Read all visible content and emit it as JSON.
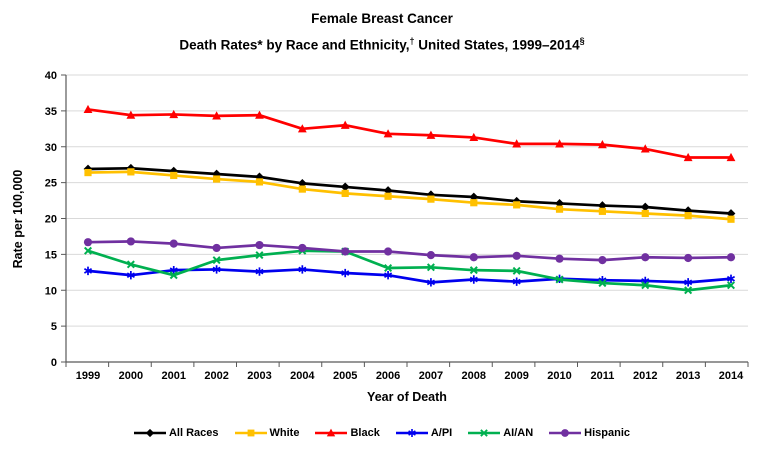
{
  "title": {
    "line1": "Female Breast Cancer",
    "line2_seg1": "Death Rates* by Race and Ethnicity,",
    "line2_sup1": "†",
    "line2_seg2": " United States, 1999–2014",
    "line2_sup2": "§"
  },
  "chart_data": {
    "type": "line",
    "title": "Female Breast Cancer Death Rates* by Race and Ethnicity,† United States, 1999–2014§",
    "xlabel": "Year of Death",
    "ylabel": "Rate per 100,000",
    "x": [
      1999,
      2000,
      2001,
      2002,
      2003,
      2004,
      2005,
      2006,
      2007,
      2008,
      2009,
      2010,
      2011,
      2012,
      2013,
      2014
    ],
    "ylim": [
      0,
      40
    ],
    "yticks": [
      0,
      5,
      10,
      15,
      20,
      25,
      30,
      35,
      40
    ],
    "grid": "horizontal",
    "legend_position": "bottom",
    "grid_color": "#d9d9d9",
    "axis_color": "#595959",
    "series": [
      {
        "name": "All Races",
        "color": "#000000",
        "marker": "diamond",
        "values": [
          26.9,
          27.0,
          26.6,
          26.2,
          25.8,
          24.9,
          24.4,
          23.9,
          23.3,
          23.0,
          22.4,
          22.1,
          21.8,
          21.6,
          21.1,
          20.7
        ]
      },
      {
        "name": "White",
        "color": "#FFC000",
        "marker": "square",
        "values": [
          26.4,
          26.5,
          26.0,
          25.5,
          25.1,
          24.1,
          23.5,
          23.1,
          22.7,
          22.2,
          21.9,
          21.3,
          21.0,
          20.7,
          20.4,
          19.9
        ]
      },
      {
        "name": "Black",
        "color": "#FF0000",
        "marker": "triangle",
        "values": [
          35.2,
          34.4,
          34.5,
          34.3,
          34.4,
          32.5,
          33.0,
          31.8,
          31.6,
          31.3,
          30.4,
          30.4,
          30.3,
          29.7,
          28.5,
          28.5
        ]
      },
      {
        "name": "A/PI",
        "color": "#0000EE",
        "marker": "asterisk",
        "values": [
          12.7,
          12.1,
          12.8,
          12.9,
          12.6,
          12.9,
          12.4,
          12.1,
          11.1,
          11.5,
          11.2,
          11.6,
          11.4,
          11.3,
          11.1,
          11.6
        ]
      },
      {
        "name": "AI/AN",
        "color": "#00B050",
        "marker": "x",
        "values": [
          15.5,
          13.6,
          12.1,
          14.2,
          14.9,
          15.5,
          15.4,
          13.1,
          13.2,
          12.8,
          12.7,
          11.5,
          11.0,
          10.7,
          10.0,
          10.7
        ]
      },
      {
        "name": "Hispanic",
        "color": "#7030A0",
        "marker": "circle",
        "values": [
          16.7,
          16.8,
          16.5,
          15.9,
          16.3,
          15.9,
          15.4,
          15.4,
          14.9,
          14.6,
          14.8,
          14.4,
          14.2,
          14.6,
          14.5,
          14.6
        ]
      }
    ]
  }
}
